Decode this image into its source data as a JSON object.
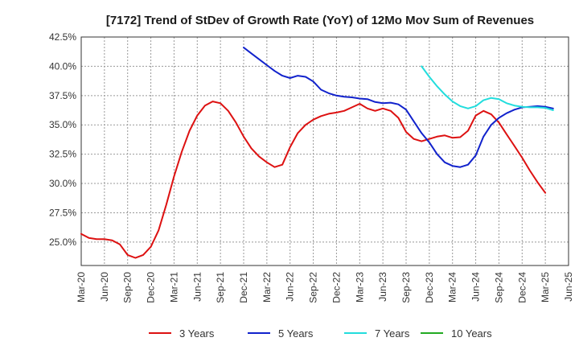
{
  "chart_data": {
    "type": "line",
    "title": "[7172]  Trend of StDev of Growth Rate (YoY) of 12Mo Mov Sum of Revenues",
    "xlabel": "",
    "ylabel": "",
    "ylim": [
      23.0,
      42.5
    ],
    "grid": true,
    "legend_position": "bottom",
    "x_ticks": [
      "Mar-20",
      "Jun-20",
      "Sep-20",
      "Dec-20",
      "Mar-21",
      "Jun-21",
      "Sep-21",
      "Dec-21",
      "Mar-22",
      "Jun-22",
      "Sep-22",
      "Dec-22",
      "Mar-23",
      "Jun-23",
      "Sep-23",
      "Dec-23",
      "Mar-24",
      "Jun-24",
      "Sep-24",
      "Dec-24",
      "Mar-25",
      "Jun-25"
    ],
    "y_ticks": [
      25.0,
      27.5,
      30.0,
      32.5,
      35.0,
      37.5,
      40.0,
      42.5
    ],
    "y_tick_labels": [
      "25.0%",
      "27.5%",
      "30.0%",
      "32.5%",
      "35.0%",
      "37.5%",
      "40.0%",
      "42.5%"
    ],
    "series": [
      {
        "name": "3 Years",
        "color": "#dd1111",
        "start_index": 0,
        "values": [
          25.7,
          25.35,
          25.25,
          25.25,
          25.15,
          24.8,
          23.9,
          23.65,
          23.9,
          24.6,
          26.0,
          28.2,
          30.6,
          32.7,
          34.5,
          35.8,
          36.65,
          37.0,
          36.85,
          36.2,
          35.2,
          34.0,
          33.0,
          32.3,
          31.8,
          31.4,
          31.6,
          33.1,
          34.3,
          35.0,
          35.45,
          35.75,
          35.95,
          36.05,
          36.2,
          36.5,
          36.8,
          36.4,
          36.2,
          36.4,
          36.2,
          35.6,
          34.4,
          33.8,
          33.6,
          33.8,
          34.0,
          34.1,
          33.9,
          33.95,
          34.5,
          35.8,
          36.2,
          35.9,
          35.2,
          34.2,
          33.2,
          32.2,
          31.1,
          30.1,
          29.2
        ]
      },
      {
        "name": "5 Years",
        "color": "#1122cc",
        "start_index": 21,
        "values": [
          41.6,
          41.1,
          40.6,
          40.1,
          39.6,
          39.2,
          39.0,
          39.2,
          39.1,
          38.7,
          38.0,
          37.7,
          37.5,
          37.4,
          37.35,
          37.25,
          37.2,
          36.95,
          36.85,
          36.9,
          36.75,
          36.3,
          35.3,
          34.3,
          33.5,
          32.5,
          31.8,
          31.5,
          31.4,
          31.6,
          32.4,
          34.0,
          35.0,
          35.6,
          36.0,
          36.3,
          36.5,
          36.55,
          36.6,
          36.55,
          36.4
        ]
      },
      {
        "name": "7 Years",
        "color": "#22dddd",
        "start_index": 44,
        "values": [
          40.0,
          39.1,
          38.3,
          37.6,
          37.0,
          36.6,
          36.4,
          36.6,
          37.1,
          37.3,
          37.2,
          36.85,
          36.65,
          36.55,
          36.5,
          36.5,
          36.45,
          36.25
        ]
      },
      {
        "name": "10 Years",
        "color": "#22aa22",
        "start_index": 0,
        "values": []
      }
    ]
  }
}
